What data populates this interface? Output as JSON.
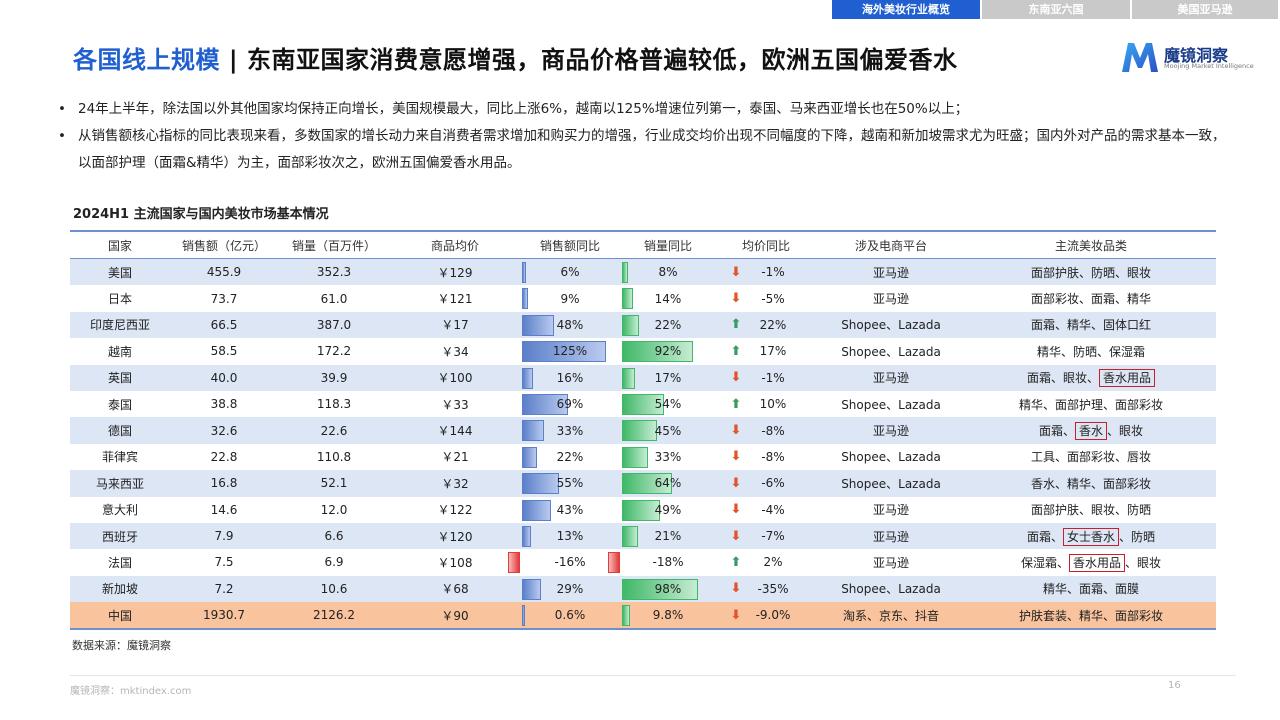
{
  "nav": {
    "tabs": [
      {
        "label": "海外美妆行业概览",
        "active": true
      },
      {
        "label": "东南亚六国",
        "active": false
      },
      {
        "label": "美国亚马逊",
        "active": false
      }
    ]
  },
  "headline": {
    "topic": "各国线上规模",
    "separator": " | ",
    "text": "东南亚国家消费意愿增强，商品价格普遍较低，欧洲五国偏爱香水"
  },
  "logo": {
    "name": "魔镜洞察",
    "sub": "Moojing Market Intelligence",
    "icon": "m-logo-icon"
  },
  "bullets": [
    "24年上半年，除法国以外其他国家均保持正向增长，美国规模最大，同比上涨6%，越南以125%增速位列第一，泰国、马来西亚增长也在50%以上；",
    "从销售额核心指标的同比表现来看，多数国家的增长动力来自消费者需求增加和购买力的增强，行业成交均价出现不同幅度的下降，越南和新加坡需求尤为旺盛；国内外对产品的需求基本一致，以面部护理（面霜&精华）为主，面部彩妆次之，欧洲五国偏爱香水用品。"
  ],
  "bullet_dot": "•",
  "table": {
    "title": "2024H1 主流国家与国内美妆市场基本情况",
    "headers": [
      "国家",
      "销售额（亿元）",
      "销量（百万件）",
      "商品均价",
      "销售额同比",
      "销量同比",
      "均价同比",
      "涉及电商平台",
      "主流美妆品类"
    ],
    "rows": [
      {
        "country": "美国",
        "sales": "455.9",
        "volume": "352.3",
        "price": "￥129",
        "sales_yoy": "6%",
        "sales_yoy_value": 6,
        "volume_yoy": "8%",
        "volume_yoy_value": 8,
        "price_yoy": "-1%",
        "price_dir": "down",
        "platform": "亚马逊",
        "categories": [
          {
            "t": "面部护肤、防晒、眼妆",
            "hl": false
          }
        ]
      },
      {
        "country": "日本",
        "sales": "73.7",
        "volume": "61.0",
        "price": "￥121",
        "sales_yoy": "9%",
        "sales_yoy_value": 9,
        "volume_yoy": "14%",
        "volume_yoy_value": 14,
        "price_yoy": "-5%",
        "price_dir": "down",
        "platform": "亚马逊",
        "categories": [
          {
            "t": "面部彩妆、面霜、精华",
            "hl": false
          }
        ]
      },
      {
        "country": "印度尼西亚",
        "sales": "66.5",
        "volume": "387.0",
        "price": "￥17",
        "sales_yoy": "48%",
        "sales_yoy_value": 48,
        "volume_yoy": "22%",
        "volume_yoy_value": 22,
        "price_yoy": "22%",
        "price_dir": "up",
        "platform": "Shopee、Lazada",
        "categories": [
          {
            "t": "面霜、精华、固体口红",
            "hl": false
          }
        ]
      },
      {
        "country": "越南",
        "sales": "58.5",
        "volume": "172.2",
        "price": "￥34",
        "sales_yoy": "125%",
        "sales_yoy_value": 125,
        "volume_yoy": "92%",
        "volume_yoy_value": 92,
        "price_yoy": "17%",
        "price_dir": "up",
        "platform": "Shopee、Lazada",
        "categories": [
          {
            "t": "精华、防晒、保湿霜",
            "hl": false
          }
        ]
      },
      {
        "country": "英国",
        "sales": "40.0",
        "volume": "39.9",
        "price": "￥100",
        "sales_yoy": "16%",
        "sales_yoy_value": 16,
        "volume_yoy": "17%",
        "volume_yoy_value": 17,
        "price_yoy": "-1%",
        "price_dir": "down",
        "platform": "亚马逊",
        "categories": [
          {
            "t": "面霜、眼妆、",
            "hl": false
          },
          {
            "t": "香水用品",
            "hl": true
          }
        ]
      },
      {
        "country": "泰国",
        "sales": "38.8",
        "volume": "118.3",
        "price": "￥33",
        "sales_yoy": "69%",
        "sales_yoy_value": 69,
        "volume_yoy": "54%",
        "volume_yoy_value": 54,
        "price_yoy": "10%",
        "price_dir": "up",
        "platform": "Shopee、Lazada",
        "categories": [
          {
            "t": "精华、面部护理、面部彩妆",
            "hl": false
          }
        ]
      },
      {
        "country": "德国",
        "sales": "32.6",
        "volume": "22.6",
        "price": "￥144",
        "sales_yoy": "33%",
        "sales_yoy_value": 33,
        "volume_yoy": "45%",
        "volume_yoy_value": 45,
        "price_yoy": "-8%",
        "price_dir": "down",
        "platform": "亚马逊",
        "categories": [
          {
            "t": "面霜、",
            "hl": false
          },
          {
            "t": "香水",
            "hl": true
          },
          {
            "t": "、眼妆",
            "hl": false
          }
        ]
      },
      {
        "country": "菲律宾",
        "sales": "22.8",
        "volume": "110.8",
        "price": "￥21",
        "sales_yoy": "22%",
        "sales_yoy_value": 22,
        "volume_yoy": "33%",
        "volume_yoy_value": 33,
        "price_yoy": "-8%",
        "price_dir": "down",
        "platform": "Shopee、Lazada",
        "categories": [
          {
            "t": "工具、面部彩妆、唇妆",
            "hl": false
          }
        ]
      },
      {
        "country": "马来西亚",
        "sales": "16.8",
        "volume": "52.1",
        "price": "￥32",
        "sales_yoy": "55%",
        "sales_yoy_value": 55,
        "volume_yoy": "64%",
        "volume_yoy_value": 64,
        "price_yoy": "-6%",
        "price_dir": "down",
        "platform": "Shopee、Lazada",
        "categories": [
          {
            "t": "香水、精华、面部彩妆",
            "hl": false
          }
        ]
      },
      {
        "country": "意大利",
        "sales": "14.6",
        "volume": "12.0",
        "price": "￥122",
        "sales_yoy": "43%",
        "sales_yoy_value": 43,
        "volume_yoy": "49%",
        "volume_yoy_value": 49,
        "price_yoy": "-4%",
        "price_dir": "down",
        "platform": "亚马逊",
        "categories": [
          {
            "t": "面部护肤、眼妆、防晒",
            "hl": false
          }
        ]
      },
      {
        "country": "西班牙",
        "sales": "7.9",
        "volume": "6.6",
        "price": "￥120",
        "sales_yoy": "13%",
        "sales_yoy_value": 13,
        "volume_yoy": "21%",
        "volume_yoy_value": 21,
        "price_yoy": "-7%",
        "price_dir": "down",
        "platform": "亚马逊",
        "categories": [
          {
            "t": "面霜、",
            "hl": false
          },
          {
            "t": "女士香水",
            "hl": true
          },
          {
            "t": "、防晒",
            "hl": false
          }
        ]
      },
      {
        "country": "法国",
        "sales": "7.5",
        "volume": "6.9",
        "price": "￥108",
        "sales_yoy": "-16%",
        "sales_yoy_value": -16,
        "volume_yoy": "-18%",
        "volume_yoy_value": -18,
        "price_yoy": "2%",
        "price_dir": "up",
        "platform": "亚马逊",
        "categories": [
          {
            "t": "保湿霜、",
            "hl": false
          },
          {
            "t": "香水用品",
            "hl": true
          },
          {
            "t": "、眼妆",
            "hl": false
          }
        ]
      },
      {
        "country": "新加坡",
        "sales": "7.2",
        "volume": "10.6",
        "price": "￥68",
        "sales_yoy": "29%",
        "sales_yoy_value": 29,
        "volume_yoy": "98%",
        "volume_yoy_value": 98,
        "price_yoy": "-35%",
        "price_dir": "down",
        "platform": "Shopee、Lazada",
        "categories": [
          {
            "t": "精华、面霜、面膜",
            "hl": false
          }
        ]
      },
      {
        "country": "中国",
        "sales": "1930.7",
        "volume": "2126.2",
        "price": "￥90",
        "sales_yoy": "0.6%",
        "sales_yoy_value": 0.6,
        "volume_yoy": "9.8%",
        "volume_yoy_value": 9.8,
        "price_yoy": "-9.0%",
        "price_dir": "down",
        "platform": "淘系、京东、抖音",
        "categories": [
          {
            "t": "护肤套装、精华、面部彩妆",
            "hl": false
          }
        ],
        "highlight_row": true
      }
    ]
  },
  "source": "数据来源：魔镜洞察",
  "footer": "魔镜洞察：mktindex.com",
  "page_number": "16",
  "colors": {
    "accent": "#1f5fd0",
    "row_alt": "#dde6f5",
    "china_row": "#f8c39d",
    "bar_blue": "#5b7fc9",
    "bar_green": "#3fb867",
    "bar_red": "#e33a3a",
    "arrow_down": "#e3532a",
    "arrow_up": "#3b9a63",
    "highlight_box": "#c8202a"
  }
}
